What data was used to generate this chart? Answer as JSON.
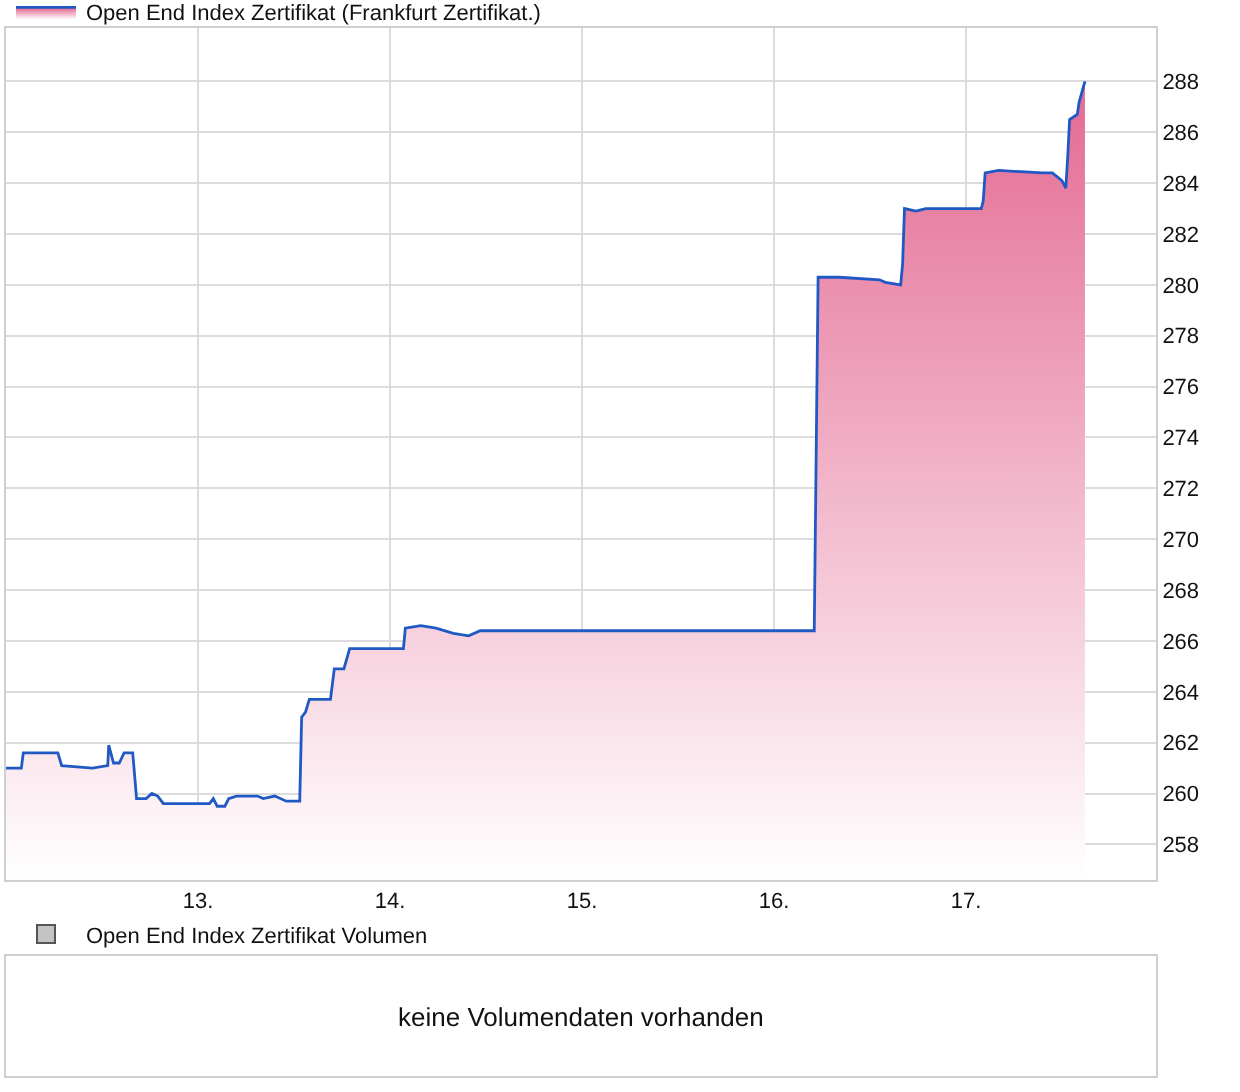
{
  "chart_data": [
    {
      "type": "area",
      "legend": "top left",
      "grid": true,
      "marker": "none",
      "line_style": "solid",
      "x": [
        12.0,
        12.08,
        12.09,
        12.27,
        12.29,
        12.45,
        12.53,
        12.535,
        12.56,
        12.59,
        12.615,
        12.66,
        12.68,
        12.73,
        12.76,
        12.79,
        12.82,
        13.06,
        13.08,
        13.1,
        13.14,
        13.16,
        13.2,
        13.31,
        13.34,
        13.4,
        13.46,
        13.53,
        13.54,
        13.56,
        13.58,
        13.69,
        13.71,
        13.76,
        13.79,
        14.07,
        14.08,
        14.16,
        14.24,
        14.33,
        14.41,
        14.47,
        16.21,
        16.23,
        16.34,
        16.55,
        16.58,
        16.66,
        16.67,
        16.68,
        16.74,
        16.79,
        17.08,
        17.09,
        17.1,
        17.17,
        17.4,
        17.45,
        17.5,
        17.52,
        17.53,
        17.54,
        17.58,
        17.59,
        17.62
      ],
      "series": [
        {
          "name": "Open End Index Zertifikat (Frankfurt Zertifikat.)",
          "color": "#2159c4",
          "values": [
            261.0,
            261.0,
            261.6,
            261.6,
            261.1,
            261.0,
            261.1,
            261.9,
            261.2,
            261.2,
            261.6,
            261.6,
            259.8,
            259.8,
            260.0,
            259.9,
            259.6,
            259.6,
            259.8,
            259.5,
            259.5,
            259.8,
            259.9,
            259.9,
            259.8,
            259.9,
            259.7,
            259.7,
            263.0,
            263.2,
            263.7,
            263.7,
            264.9,
            264.9,
            265.7,
            265.7,
            266.5,
            266.6,
            266.5,
            266.3,
            266.2,
            266.4,
            266.4,
            280.3,
            280.3,
            280.2,
            280.1,
            280.0,
            280.8,
            283.0,
            282.9,
            283.0,
            283.0,
            283.3,
            284.4,
            284.5,
            284.4,
            284.4,
            284.1,
            283.8,
            285.0,
            286.5,
            286.7,
            287.2,
            288.0
          ]
        }
      ],
      "xlim": [
        12.0,
        17.99
      ],
      "xticks": [
        {
          "value": 13,
          "label": "13."
        },
        {
          "value": 14,
          "label": "14."
        },
        {
          "value": 15,
          "label": "15."
        },
        {
          "value": 16,
          "label": "16."
        },
        {
          "value": 17,
          "label": "17."
        }
      ],
      "ylim": [
        256.6,
        290.1
      ],
      "yticks": [
        258,
        260,
        262,
        264,
        266,
        268,
        270,
        272,
        274,
        276,
        278,
        280,
        282,
        284,
        286,
        288
      ]
    },
    {
      "type": "other",
      "legend": "top left",
      "series": [
        {
          "name": "Open End Index Zertifikat Volumen",
          "color": "#c4c4c4"
        }
      ],
      "annotations": [
        "keine Volumendaten vorhanden"
      ]
    }
  ]
}
